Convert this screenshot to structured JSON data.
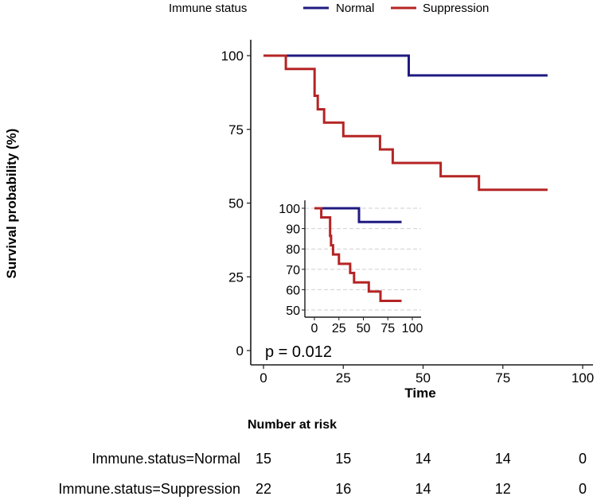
{
  "legend": {
    "title": "Immune status",
    "entries": [
      {
        "label": "Normal",
        "color": "#1f1a80"
      },
      {
        "label": "Suppression",
        "color": "#b52424"
      }
    ]
  },
  "pvalue_text": "p = 0.012",
  "risk_table": {
    "title": "Number at risk",
    "rows": [
      {
        "label": "Immune.status=Normal",
        "values": [
          "15",
          "15",
          "14",
          "14",
          "0"
        ]
      },
      {
        "label": "Immune.status=Suppression",
        "values": [
          "22",
          "16",
          "14",
          "12",
          "0"
        ]
      }
    ]
  },
  "chart_data": [
    {
      "type": "line",
      "subtype": "step",
      "name": "main",
      "title": "",
      "xlabel": "Time",
      "ylabel": "Survival probability (%)",
      "xlim": [
        0,
        100
      ],
      "ylim": [
        0,
        100
      ],
      "xticks": [
        0,
        25,
        50,
        75,
        100
      ],
      "yticks": [
        0,
        25,
        50,
        75,
        100
      ],
      "grid": false,
      "series": [
        {
          "name": "Normal",
          "color": "#1f1a80",
          "x": [
            0,
            45.5,
            89
          ],
          "y": [
            100,
            93.3,
            93.3
          ]
        },
        {
          "name": "Suppression",
          "color": "#b52424",
          "x": [
            0,
            7,
            16,
            17,
            19,
            22,
            25,
            36.5,
            40.5,
            55.5,
            67.5,
            89
          ],
          "y": [
            100,
            95.5,
            86.4,
            81.8,
            77.3,
            77.3,
            72.7,
            68.2,
            63.6,
            59.1,
            54.5,
            54.5
          ]
        }
      ]
    },
    {
      "type": "line",
      "subtype": "step",
      "name": "inset",
      "title": "",
      "xlabel": "",
      "ylabel": "",
      "xlim": [
        0,
        100
      ],
      "ylim": [
        50,
        100
      ],
      "xticks": [
        0,
        25,
        50,
        75,
        100
      ],
      "xtick_labels": [
        "0",
        "25",
        "50",
        "75",
        "100"
      ],
      "yticks": [
        50,
        60,
        70,
        80,
        90,
        100
      ],
      "grid": true,
      "series": [
        {
          "name": "Normal",
          "color": "#1f1a80",
          "x": [
            0,
            45.5,
            89
          ],
          "y": [
            100,
            93.3,
            93.3
          ]
        },
        {
          "name": "Suppression",
          "color": "#b52424",
          "x": [
            0,
            7,
            16,
            17,
            19,
            22,
            25,
            36.5,
            40.5,
            55.5,
            67.5,
            89
          ],
          "y": [
            100,
            95.5,
            86.4,
            81.8,
            77.3,
            77.3,
            72.7,
            68.2,
            63.6,
            59.1,
            54.5,
            54.5
          ]
        }
      ]
    }
  ]
}
